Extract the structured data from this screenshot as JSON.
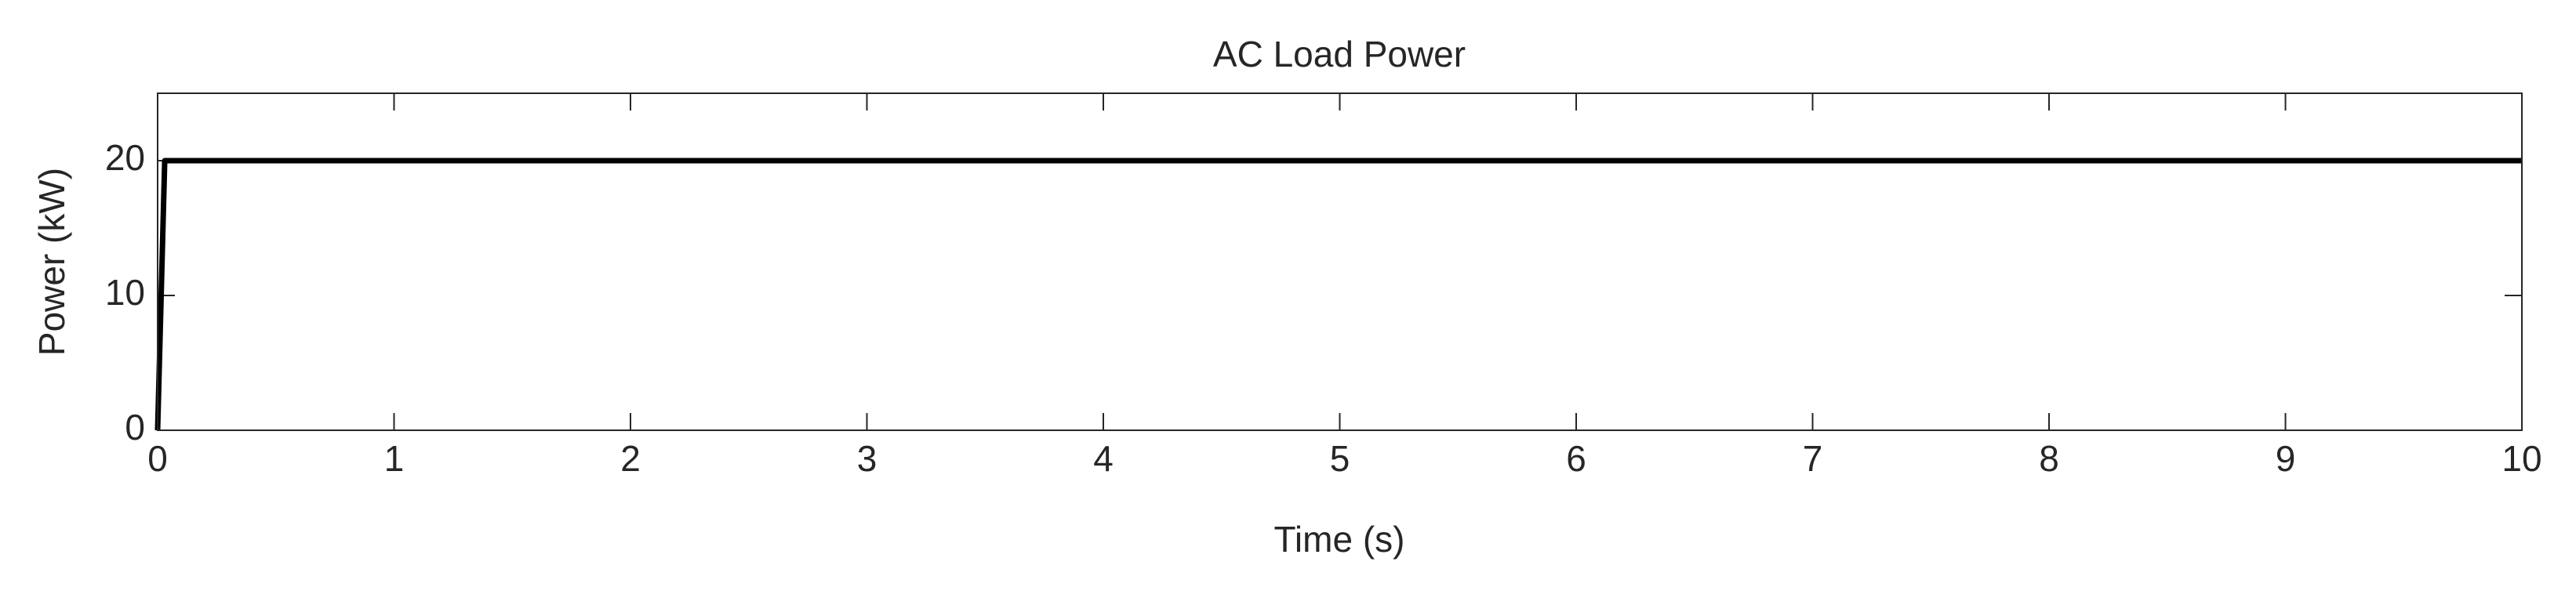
{
  "chart_data": {
    "type": "line",
    "title": "AC Load Power",
    "xlabel": "Time (s)",
    "ylabel": "Power (kW)",
    "x": [
      0,
      0.03,
      10
    ],
    "values": [
      0,
      20,
      20
    ],
    "color": "#000000",
    "xlim": [
      0,
      10
    ],
    "xticks": [
      0,
      1,
      2,
      3,
      4,
      5,
      6,
      7,
      8,
      9,
      10
    ],
    "ylim": [
      0,
      25
    ],
    "yticks": [
      0,
      10,
      20
    ],
    "grid": false
  }
}
